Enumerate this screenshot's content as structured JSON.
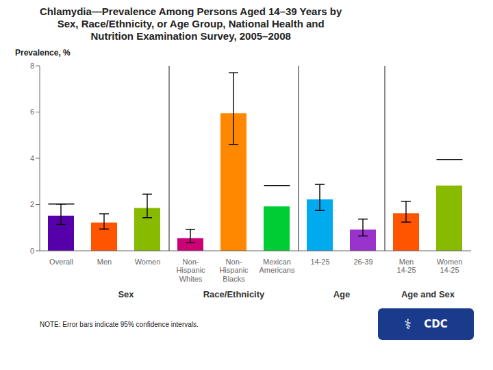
{
  "chart_data": {
    "type": "bar",
    "title": "Chlamydia—Prevalence Among Persons Aged 14–39 Years by\nSex, Race/Ethnicity, or Age Group, National Health and\nNutrition Examination Survey, 2005–2008",
    "ylabel": "Prevalence, %",
    "categories": [
      "Overall",
      "Men",
      "Women",
      "Non-\nHispanic\nWhites",
      "Non-\nHispanic\nBlacks",
      "Mexican\nAmericans",
      "14-25",
      "26-39",
      "Men\n14-25",
      "Women\n14-25"
    ],
    "values": [
      1.52,
      1.22,
      1.85,
      0.55,
      5.95,
      1.92,
      2.22,
      0.92,
      1.62,
      2.82
    ],
    "colors": [
      "#5500aa",
      "#ff5500",
      "#88bb00",
      "#cc0077",
      "#ff8800",
      "#00cc33",
      "#00aaee",
      "#9933cc",
      "#ff5500",
      "#88bb00"
    ],
    "error_low": [
      0.38,
      0.28,
      0.42,
      0.2,
      1.35,
      null,
      0.48,
      0.28,
      0.38,
      null
    ],
    "error_high": [
      0.5,
      0.38,
      0.6,
      0.38,
      1.75,
      null,
      0.65,
      0.45,
      0.52,
      null
    ],
    "ci_markers": [
      2.02,
      null,
      null,
      null,
      null,
      2.82,
      null,
      null,
      null,
      3.95
    ],
    "groups": [
      null,
      "Sex",
      "Sex",
      "Race/Ethnicity",
      "Race/Ethnicity",
      "Race/Ethnicity",
      "Age",
      "Age",
      "Age and Sex",
      "Age and Sex"
    ],
    "ylim": [
      0,
      8
    ],
    "yticks": [
      0,
      2,
      4,
      6,
      8
    ],
    "grid": false,
    "note": "NOTE: Error bars indicate 95% confidence intervals.",
    "logo": {
      "symbol": "⚕",
      "text": "CDC",
      "color": "#1a3a8c"
    }
  }
}
